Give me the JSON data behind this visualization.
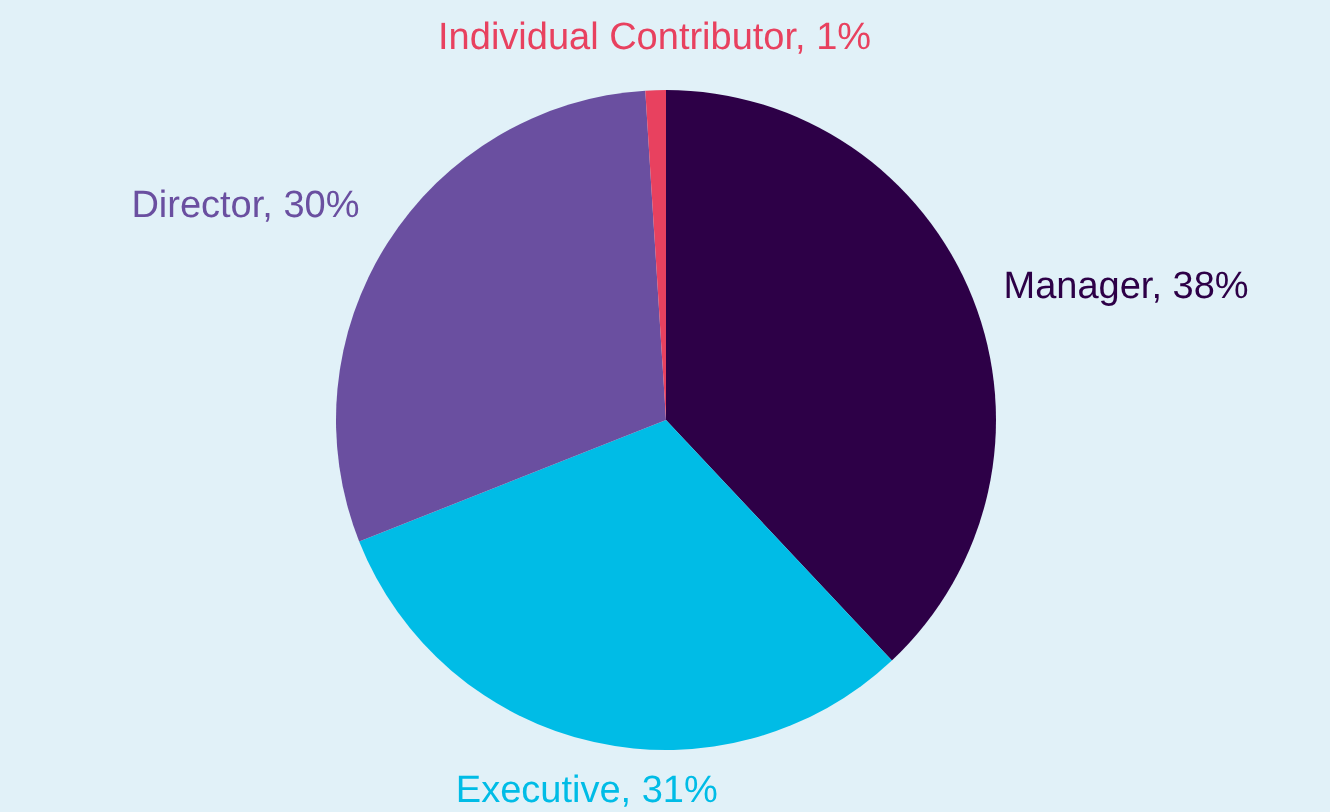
{
  "chart_data": {
    "type": "pie",
    "categories": [
      "Manager",
      "Executive",
      "Director",
      "Individual Contributor"
    ],
    "values": [
      38,
      31,
      30,
      1
    ],
    "value_labels": [
      ", 38%",
      ", 31%",
      ", 30%",
      ", 1%"
    ],
    "colors": [
      "#2d0047",
      "#00bce6",
      "#6a4fa0",
      "#e8415f"
    ],
    "legend": false
  }
}
